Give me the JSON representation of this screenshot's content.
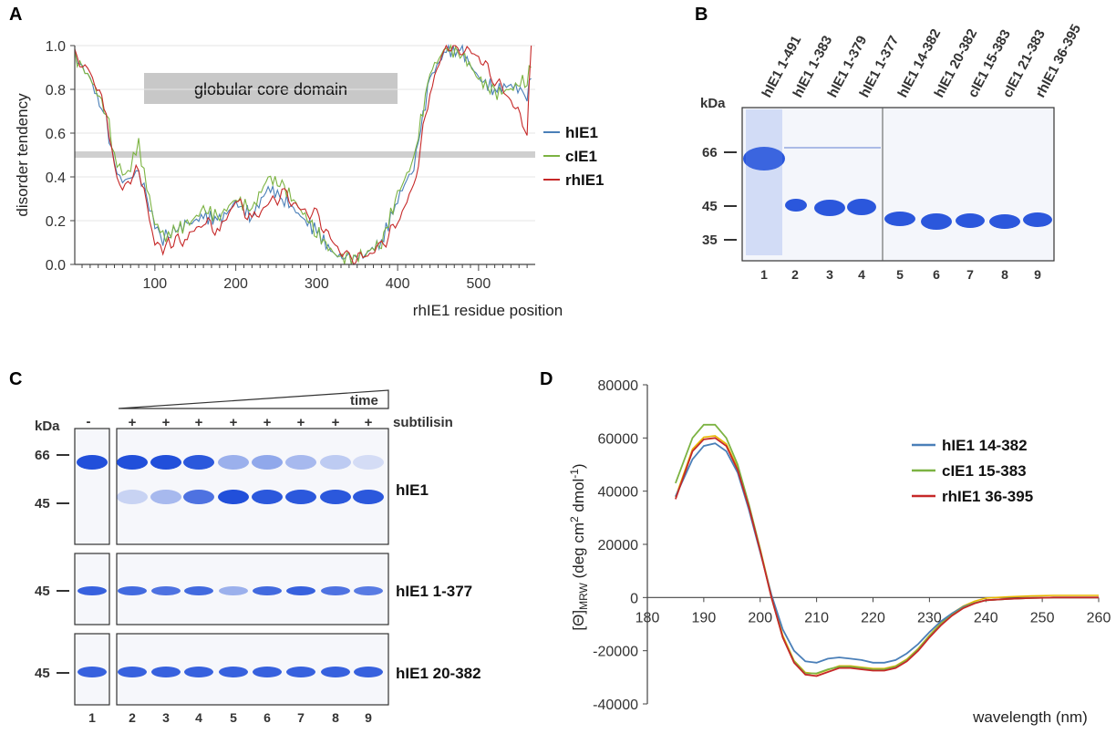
{
  "panels": {
    "a": "A",
    "b": "B",
    "c": "C",
    "d": "D"
  },
  "panel_a": {
    "box_label": "globular core domain",
    "xlabel": "rhIE1 residue position",
    "ylabel": "disorder tendency",
    "yticks": [
      "0.0",
      "0.2",
      "0.4",
      "0.6",
      "0.8",
      "1.0"
    ],
    "xticks": [
      "100",
      "200",
      "300",
      "400",
      "500"
    ],
    "legend": [
      "hIE1",
      "cIE1",
      "rhIE1"
    ]
  },
  "panel_b": {
    "kda": "kDa",
    "markers": [
      "66",
      "45",
      "35"
    ],
    "lane_labels": [
      "hIE1 1-491",
      "hIE1 1-383",
      "hIE1 1-379",
      "hIE1 1-377",
      "hIE1 14-382",
      "hIE1 20-382",
      "cIE1 15-383",
      "cIE1 21-383",
      "rhIE1 36-395"
    ],
    "lane_numbers": [
      "1",
      "2",
      "3",
      "4",
      "5",
      "6",
      "7",
      "8",
      "9"
    ]
  },
  "panel_c": {
    "kda": "kDa",
    "time": "time",
    "subtilisin": "subtilisin",
    "minus": "-",
    "plus": "+",
    "gel_labels": [
      "hIE1",
      "hIE1 1-377",
      "hIE1 20-382"
    ],
    "markers_top": [
      "66",
      "45"
    ],
    "marker_mid": "45",
    "marker_bot": "45",
    "lane_numbers": [
      "1",
      "2",
      "3",
      "4",
      "5",
      "6",
      "7",
      "8",
      "9"
    ]
  },
  "colors": {
    "hIE1": "#4a7fb8",
    "cIE1": "#7cb342",
    "rhIE1": "#c62828",
    "cd_yellow": "#e8b800"
  },
  "chart_data": [
    {
      "type": "line",
      "title": "",
      "xlabel": "rhIE1 residue position",
      "ylabel": "disorder tendency",
      "xlim": [
        1,
        570
      ],
      "ylim": [
        0,
        1.0
      ],
      "threshold": 0.5,
      "series": [
        {
          "name": "hIE1",
          "x": [
            1,
            20,
            40,
            50,
            60,
            70,
            80,
            90,
            100,
            110,
            120,
            140,
            160,
            180,
            200,
            220,
            240,
            260,
            280,
            300,
            320,
            340,
            360,
            380,
            400,
            420,
            440,
            460,
            480,
            500,
            520,
            540,
            560,
            565
          ],
          "y": [
            0.95,
            0.85,
            0.65,
            0.45,
            0.38,
            0.4,
            0.42,
            0.3,
            0.18,
            0.12,
            0.15,
            0.18,
            0.22,
            0.2,
            0.28,
            0.22,
            0.35,
            0.3,
            0.22,
            0.15,
            0.05,
            0.02,
            0.05,
            0.1,
            0.3,
            0.45,
            0.85,
            0.98,
            0.97,
            0.85,
            0.8,
            0.82,
            0.78,
            0.85
          ]
        },
        {
          "name": "cIE1",
          "x": [
            1,
            20,
            40,
            50,
            60,
            70,
            80,
            90,
            100,
            110,
            120,
            140,
            160,
            180,
            200,
            220,
            240,
            260,
            280,
            300,
            320,
            340,
            360,
            380,
            400,
            420,
            440,
            460,
            480,
            500,
            520,
            540,
            560,
            565
          ],
          "y": [
            0.95,
            0.85,
            0.7,
            0.5,
            0.4,
            0.45,
            0.55,
            0.35,
            0.2,
            0.12,
            0.15,
            0.18,
            0.25,
            0.22,
            0.3,
            0.25,
            0.4,
            0.35,
            0.25,
            0.15,
            0.05,
            0.02,
            0.05,
            0.1,
            0.32,
            0.48,
            0.88,
            0.99,
            0.96,
            0.85,
            0.78,
            0.8,
            0.85,
            0.9
          ]
        },
        {
          "name": "rhIE1",
          "x": [
            1,
            20,
            40,
            50,
            60,
            70,
            80,
            90,
            100,
            110,
            120,
            140,
            160,
            180,
            200,
            220,
            240,
            260,
            280,
            300,
            320,
            340,
            360,
            380,
            400,
            420,
            440,
            460,
            480,
            500,
            520,
            540,
            560,
            565
          ],
          "y": [
            0.95,
            0.88,
            0.7,
            0.45,
            0.35,
            0.4,
            0.45,
            0.28,
            0.1,
            0.08,
            0.1,
            0.12,
            0.2,
            0.15,
            0.3,
            0.2,
            0.28,
            0.32,
            0.25,
            0.22,
            0.1,
            0.02,
            0.04,
            0.08,
            0.2,
            0.35,
            0.8,
            1.0,
            0.99,
            0.95,
            0.85,
            0.75,
            0.62,
            1.0
          ]
        }
      ]
    },
    {
      "type": "line",
      "title": "",
      "xlabel": "wavelength (nm)",
      "ylabel": "[Θ]MRW (deg cm2 dmol-1)",
      "xlim": [
        180,
        260
      ],
      "ylim": [
        -40000,
        80000
      ],
      "xticks": [
        "180",
        "190",
        "200",
        "210",
        "220",
        "230",
        "240",
        "250",
        "260"
      ],
      "yticks": [
        "80000",
        "60000",
        "40000",
        "20000",
        "0",
        "-20000",
        "-40000"
      ],
      "series": [
        {
          "name": "hIE1 14-382",
          "x": [
            185,
            188,
            190,
            192,
            194,
            196,
            198,
            200,
            202,
            204,
            206,
            208,
            210,
            212,
            214,
            216,
            218,
            220,
            222,
            224,
            226,
            228,
            230,
            232,
            234,
            236,
            238,
            240,
            244,
            248,
            252,
            256,
            260
          ],
          "y": [
            38000,
            52000,
            57000,
            58000,
            55000,
            47000,
            33000,
            17000,
            1000,
            -12000,
            -20000,
            -24000,
            -24500,
            -23000,
            -22500,
            -23000,
            -23500,
            -24500,
            -24500,
            -23500,
            -21000,
            -17500,
            -13000,
            -9000,
            -6000,
            -3500,
            -2000,
            -1000,
            -500,
            -200,
            0,
            0,
            0
          ]
        },
        {
          "name": "cIE1 15-383",
          "x": [
            185,
            188,
            190,
            192,
            194,
            196,
            198,
            200,
            202,
            204,
            206,
            208,
            210,
            212,
            214,
            216,
            218,
            220,
            222,
            224,
            226,
            228,
            230,
            232,
            234,
            236,
            238,
            240,
            244,
            248,
            252,
            256,
            260
          ],
          "y": [
            43000,
            60000,
            65000,
            65000,
            60000,
            50000,
            35000,
            18000,
            0,
            -15000,
            -24000,
            -28500,
            -28500,
            -27000,
            -26000,
            -26000,
            -26500,
            -27000,
            -27000,
            -26000,
            -23500,
            -19500,
            -14500,
            -10000,
            -6500,
            -3800,
            -2000,
            -1000,
            -500,
            -200,
            0,
            0,
            0
          ]
        },
        {
          "name": "rhIE1 36-395",
          "x": [
            185,
            188,
            190,
            192,
            194,
            196,
            198,
            200,
            202,
            204,
            206,
            208,
            210,
            212,
            214,
            216,
            218,
            220,
            222,
            224,
            226,
            228,
            230,
            232,
            234,
            236,
            238,
            240,
            244,
            248,
            252,
            256,
            260
          ],
          "y": [
            37000,
            55000,
            59500,
            60000,
            57000,
            48000,
            34000,
            17500,
            0,
            -15000,
            -24500,
            -29000,
            -29500,
            -28000,
            -26500,
            -26500,
            -27000,
            -27500,
            -27500,
            -26500,
            -24000,
            -20000,
            -15000,
            -10500,
            -6800,
            -4000,
            -2200,
            -1000,
            -500,
            -200,
            0,
            0,
            0
          ]
        }
      ]
    }
  ]
}
